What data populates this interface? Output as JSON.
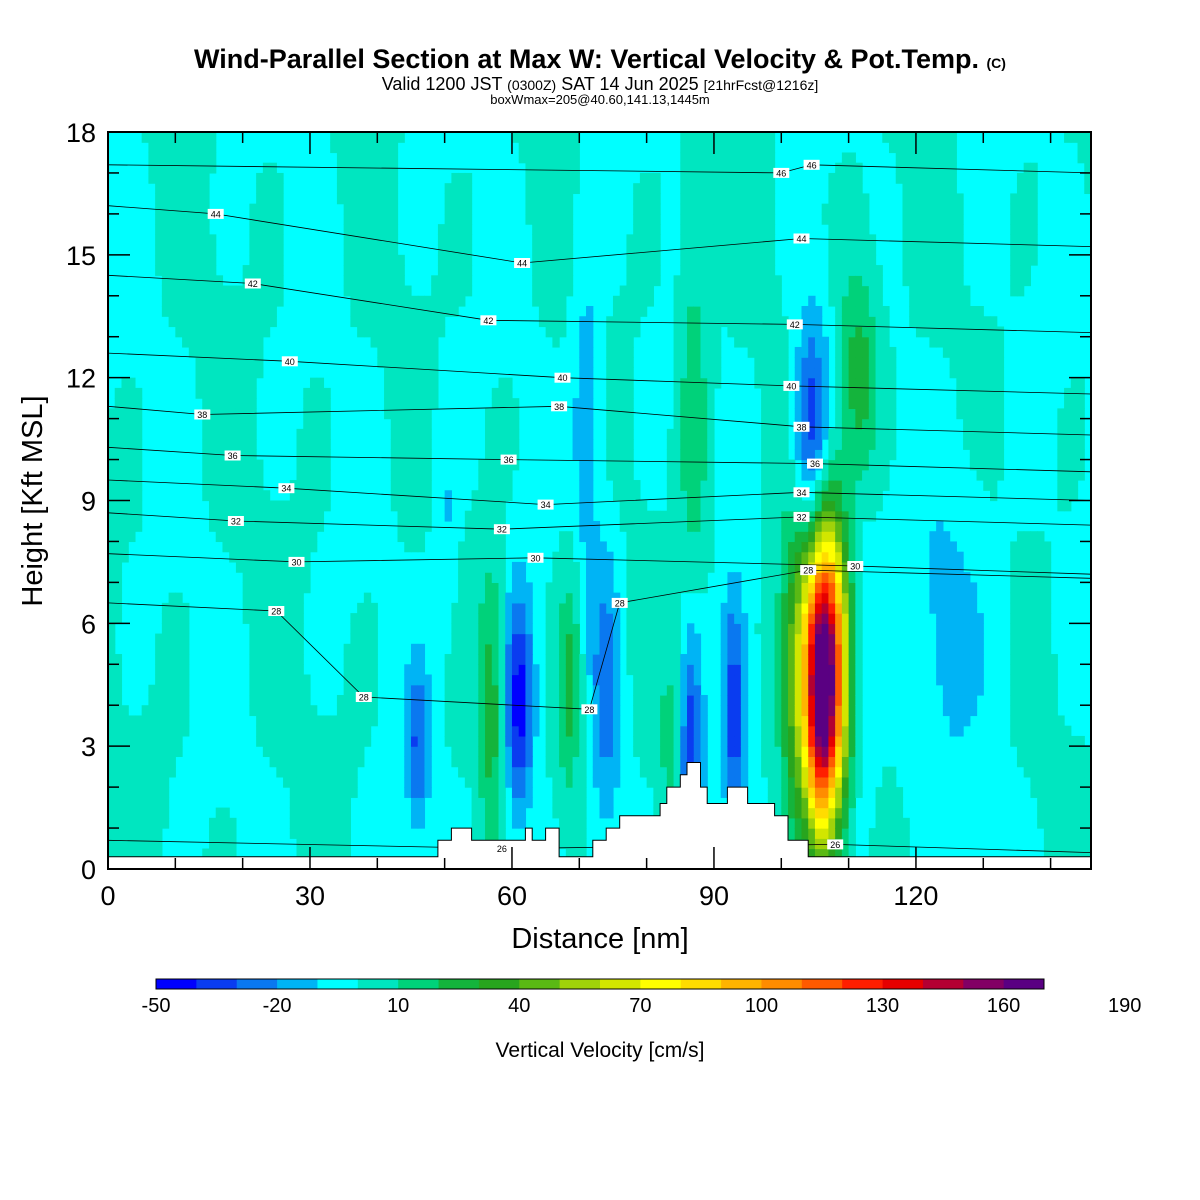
{
  "header": {
    "title_main": "Wind-Parallel Section at Max W: Vertical Velocity & Pot.Temp.",
    "title_mark": "(C)",
    "valid_prefix": "Valid 1200 JST",
    "valid_utc": "(0300Z)",
    "valid_date": "SAT 14 Jun 2025",
    "valid_fcst": "[21hrFcst@1216z]",
    "box_info": "boxWmax=205@40.60,141.13,1445m"
  },
  "chart_data": {
    "type": "heatmap",
    "xlabel": "Distance [nm]",
    "ylabel": "Height [Kft MSL]",
    "xlim": [
      0,
      146
    ],
    "ylim": [
      0,
      18
    ],
    "x_ticks": [
      0,
      30,
      60,
      90,
      120
    ],
    "y_ticks": [
      0,
      3,
      6,
      9,
      12,
      15,
      18
    ],
    "colorbar": {
      "title": "Vertical Velocity [cm/s]",
      "min": -50,
      "step": 10,
      "tick_labels": [
        "-50",
        "-20",
        "10",
        "40",
        "70",
        "100",
        "130",
        "160",
        "190"
      ],
      "tick_values": [
        -50,
        -20,
        10,
        40,
        70,
        100,
        130,
        160,
        190
      ],
      "colors": [
        "#0000ff",
        "#0a3cf0",
        "#0a78f0",
        "#00b4f5",
        "#00ffff",
        "#00e6c0",
        "#00d27a",
        "#14b43c",
        "#28a51e",
        "#5ab914",
        "#a0d20a",
        "#d2e600",
        "#ffff00",
        "#ffdc00",
        "#ffb400",
        "#ff8c00",
        "#ff5a00",
        "#ff1e00",
        "#e60000",
        "#b40032",
        "#820064",
        "#5a0082"
      ]
    },
    "theta_contour_labels": [
      {
        "x": 100,
        "y": 17,
        "label": "46"
      },
      {
        "x": 104.5,
        "y": 17.2,
        "label": "46"
      },
      {
        "x": 16,
        "y": 16.0,
        "label": "44"
      },
      {
        "x": 61.5,
        "y": 14.8,
        "label": "44"
      },
      {
        "x": 103,
        "y": 15.4,
        "label": "44"
      },
      {
        "x": 21.5,
        "y": 14.3,
        "label": "42"
      },
      {
        "x": 56.5,
        "y": 13.4,
        "label": "42"
      },
      {
        "x": 102,
        "y": 13.3,
        "label": "42"
      },
      {
        "x": 27,
        "y": 12.4,
        "label": "40"
      },
      {
        "x": 67.5,
        "y": 12.0,
        "label": "40"
      },
      {
        "x": 101.5,
        "y": 11.8,
        "label": "40"
      },
      {
        "x": 14,
        "y": 11.1,
        "label": "38"
      },
      {
        "x": 67,
        "y": 11.3,
        "label": "38"
      },
      {
        "x": 103,
        "y": 10.8,
        "label": "38"
      },
      {
        "x": 18.5,
        "y": 10.1,
        "label": "36"
      },
      {
        "x": 59.5,
        "y": 10.0,
        "label": "36"
      },
      {
        "x": 105,
        "y": 9.9,
        "label": "36"
      },
      {
        "x": 26.5,
        "y": 9.3,
        "label": "34"
      },
      {
        "x": 65,
        "y": 8.9,
        "label": "34"
      },
      {
        "x": 103,
        "y": 9.2,
        "label": "34"
      },
      {
        "x": 19,
        "y": 8.5,
        "label": "32"
      },
      {
        "x": 58.5,
        "y": 8.3,
        "label": "32"
      },
      {
        "x": 103,
        "y": 8.6,
        "label": "32"
      },
      {
        "x": 28,
        "y": 7.5,
        "label": "30"
      },
      {
        "x": 63.5,
        "y": 7.6,
        "label": "30"
      },
      {
        "x": 111,
        "y": 7.4,
        "label": "30"
      },
      {
        "x": 25,
        "y": 6.3,
        "label": "28"
      },
      {
        "x": 76,
        "y": 6.5,
        "label": "28"
      },
      {
        "x": 104,
        "y": 7.3,
        "label": "28"
      },
      {
        "x": 38,
        "y": 4.2,
        "label": "28"
      },
      {
        "x": 71.5,
        "y": 3.9,
        "label": "28"
      },
      {
        "x": 58.5,
        "y": 0.5,
        "label": "26"
      },
      {
        "x": 108,
        "y": 0.6,
        "label": "26"
      }
    ],
    "terrain": [
      [
        0,
        0.3
      ],
      [
        49,
        0.3
      ],
      [
        49,
        0.7
      ],
      [
        51,
        0.7
      ],
      [
        51,
        1.0
      ],
      [
        54,
        1.0
      ],
      [
        54,
        0.7
      ],
      [
        62,
        0.7
      ],
      [
        62,
        1.0
      ],
      [
        63,
        1.0
      ],
      [
        63,
        0.7
      ],
      [
        65,
        0.7
      ],
      [
        65,
        1.0
      ],
      [
        67,
        1.0
      ],
      [
        67,
        0.3
      ],
      [
        72,
        0.3
      ],
      [
        72,
        0.7
      ],
      [
        74,
        0.7
      ],
      [
        74,
        1.0
      ],
      [
        76,
        1.0
      ],
      [
        76,
        1.3
      ],
      [
        82,
        1.3
      ],
      [
        82,
        1.6
      ],
      [
        83,
        1.6
      ],
      [
        83,
        2.0
      ],
      [
        85,
        2.0
      ],
      [
        85,
        2.3
      ],
      [
        86,
        2.3
      ],
      [
        86,
        2.6
      ],
      [
        88,
        2.6
      ],
      [
        88,
        2.0
      ],
      [
        89,
        2.0
      ],
      [
        89,
        1.6
      ],
      [
        92,
        1.6
      ],
      [
        92,
        2.0
      ],
      [
        95,
        2.0
      ],
      [
        95,
        1.6
      ],
      [
        99,
        1.6
      ],
      [
        99,
        1.3
      ],
      [
        101,
        1.3
      ],
      [
        101,
        0.7
      ],
      [
        104,
        0.7
      ],
      [
        104,
        0.3
      ],
      [
        146,
        0.3
      ]
    ],
    "w_features": [
      {
        "x": 106,
        "y": 4.8,
        "sx": 3.0,
        "sy": 2.6,
        "w": 170
      },
      {
        "x": 105.5,
        "y": 3.5,
        "sx": 1.6,
        "sy": 2.2,
        "w": 40
      },
      {
        "x": 104.5,
        "y": 10.5,
        "sx": 1.8,
        "sy": 2.0,
        "w": -45
      },
      {
        "x": 104,
        "y": 4.5,
        "sx": 1.4,
        "sy": 2.5,
        "w": -40
      },
      {
        "x": 111,
        "y": 4.8,
        "sx": 2.0,
        "sy": 3.0,
        "w": -30
      },
      {
        "x": 86.5,
        "y": 2.5,
        "sx": 1.3,
        "sy": 2.3,
        "w": -45
      },
      {
        "x": 93,
        "y": 4.0,
        "sx": 1.3,
        "sy": 2.0,
        "w": -38
      },
      {
        "x": 61,
        "y": 4.0,
        "sx": 1.5,
        "sy": 2.0,
        "w": -45
      },
      {
        "x": 46,
        "y": 3.0,
        "sx": 1.2,
        "sy": 1.5,
        "w": -30
      },
      {
        "x": 74,
        "y": 4.5,
        "sx": 1.5,
        "sy": 2.5,
        "w": -25
      },
      {
        "x": 57,
        "y": 4.0,
        "sx": 1.3,
        "sy": 2.5,
        "w": 25
      },
      {
        "x": 68.5,
        "y": 4.5,
        "sx": 1.3,
        "sy": 2.0,
        "w": 25
      },
      {
        "x": 84,
        "y": 3.0,
        "sx": 1.5,
        "sy": 1.8,
        "w": 15
      },
      {
        "x": 111.5,
        "y": 12.0,
        "sx": 2.0,
        "sy": 2.0,
        "w": 28
      },
      {
        "x": 87,
        "y": 11.0,
        "sx": 1.5,
        "sy": 3.5,
        "w": 18
      },
      {
        "x": 71,
        "y": 11.0,
        "sx": 1.5,
        "sy": 3.0,
        "w": -18
      },
      {
        "x": 50,
        "y": 8.5,
        "sx": 1.3,
        "sy": 2.0,
        "w": -12
      },
      {
        "x": 125,
        "y": 6.0,
        "sx": 5.0,
        "sy": 3.0,
        "w": -12
      }
    ]
  }
}
